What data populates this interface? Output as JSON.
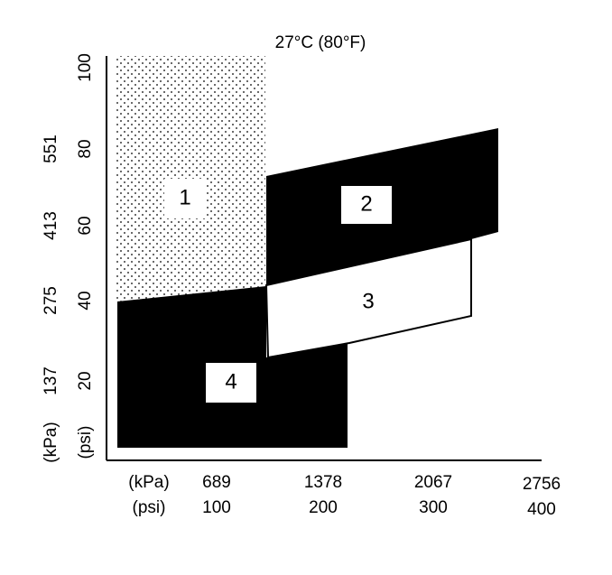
{
  "title": "27°C (80°F)",
  "y_axis": {
    "kpa_unit": "(kPa)",
    "psi_unit": "(psi)",
    "kpa_ticks": [
      "551",
      "413",
      "275",
      "137"
    ],
    "psi_ticks": [
      "100",
      "80",
      "60",
      "40",
      "20"
    ]
  },
  "x_axis": {
    "kpa_unit": "(kPa)",
    "psi_unit": "(psi)",
    "kpa_ticks": [
      "689",
      "1378",
      "2067",
      "2756"
    ],
    "psi_ticks": [
      "100",
      "200",
      "300",
      "400"
    ]
  },
  "regions": [
    {
      "label": "1"
    },
    {
      "label": "2"
    },
    {
      "label": "3"
    },
    {
      "label": "4"
    }
  ]
}
